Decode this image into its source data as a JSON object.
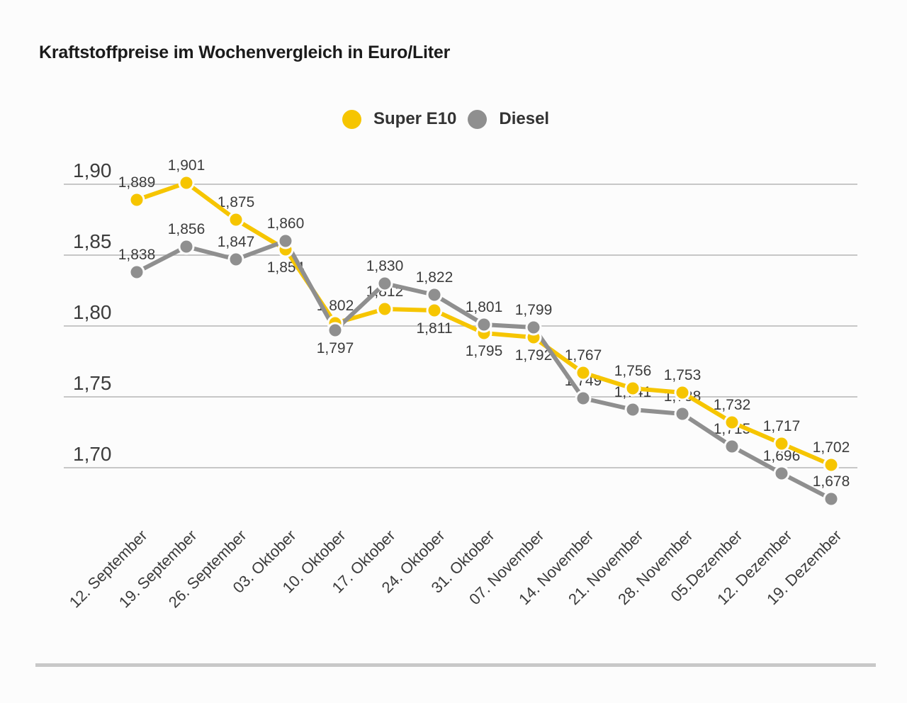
{
  "title": "Kraftstoffpreise im Wochenvergleich in Euro/Liter",
  "legend": {
    "items": [
      {
        "label": "Super E10"
      },
      {
        "label": "Diesel"
      }
    ]
  },
  "chart_data": {
    "type": "line",
    "title": "Kraftstoffpreise im Wochenvergleich in Euro/Liter",
    "xlabel": "",
    "ylabel": "Euro/Liter",
    "grid": true,
    "legend_position": "top-center",
    "ylim": [
      1.655,
      1.92
    ],
    "categories": [
      "12. September",
      "19. September",
      "26. September",
      "03. Oktober",
      "10. Oktober",
      "17. Oktober",
      "24. Oktober",
      "31. Oktober",
      "07. November",
      "14. November",
      "21. November",
      "28. November",
      "05.Dezember",
      "12. Dezember",
      "19. Dezember"
    ],
    "y_axis": {
      "labels": [
        "1,90",
        "1,85",
        "1,80",
        "1,75",
        "1,70"
      ],
      "values": [
        1.9,
        1.85,
        1.8,
        1.75,
        1.7
      ]
    },
    "series": [
      {
        "name": "Super E10",
        "color": "#F6C500",
        "values": [
          1.889,
          1.901,
          1.875,
          1.854,
          1.802,
          1.812,
          1.811,
          1.795,
          1.792,
          1.767,
          1.756,
          1.753,
          1.732,
          1.717,
          1.702
        ],
        "labels": [
          "1,889",
          "1,901",
          "1,875",
          "1,854",
          "1,802",
          "1,812",
          "1,811",
          "1,795",
          "1,792",
          "1,767",
          "1,756",
          "1,753",
          "1,732",
          "1,717",
          "1,702"
        ],
        "label_below": [
          3,
          6,
          7,
          8
        ]
      },
      {
        "name": "Diesel",
        "color": "#8F8F8F",
        "values": [
          1.838,
          1.856,
          1.847,
          1.86,
          1.797,
          1.83,
          1.822,
          1.801,
          1.799,
          1.749,
          1.741,
          1.738,
          1.715,
          1.696,
          1.678
        ],
        "labels": [
          "1,838",
          "1,856",
          "1,847",
          "1,860",
          "1,797",
          "1,830",
          "1,822",
          "1,801",
          "1,799",
          "1,749",
          "1,741",
          "1,738",
          "1,715",
          "1,696",
          "1,678"
        ],
        "label_below": [
          4
        ]
      }
    ],
    "colors": {
      "grid": "#C7C7C7",
      "background": "#FCFCFC",
      "text": "#3C3C3C"
    }
  }
}
